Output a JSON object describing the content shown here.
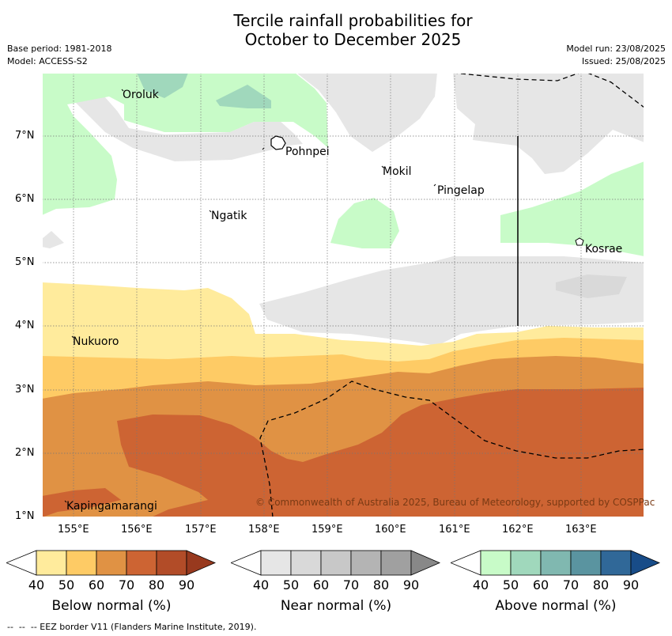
{
  "title_line1": "Tercile rainfall probabilities for",
  "title_line2": "October to December 2025",
  "base_period": "Base period: 1981-2018",
  "model": "Model: ACCESS-S2",
  "model_run": "Model run: 23/08/2025",
  "issued": "Issued: 25/08/2025",
  "places": {
    "oroluk": "Oroluk",
    "pohnpei": "Pohnpei",
    "mokil": "Mokil",
    "pingelap": "Pingelap",
    "ngatik": "Ngatik",
    "kosrae": "Kosrae",
    "nukuoro": "Nukuoro",
    "kapingamarangi": "Kapingamarangi"
  },
  "copyright": "© Commonwealth of Australia 2025, Bureau of Meteorology, supported by COSPPac",
  "lat_ticks": [
    "7°N",
    "6°N",
    "5°N",
    "4°N",
    "3°N",
    "2°N",
    "1°N"
  ],
  "lon_ticks": [
    "155°E",
    "156°E",
    "157°E",
    "158°E",
    "159°E",
    "160°E",
    "161°E",
    "162°E",
    "163°E"
  ],
  "colorbars": {
    "below": {
      "title": "Below normal (%)",
      "ticks": [
        "40",
        "50",
        "60",
        "70",
        "80",
        "90"
      ],
      "colors": [
        "#ffffff",
        "#ffeb9c",
        "#fecb65",
        "#e09244",
        "#cd6433",
        "#b24c28",
        "#98391e"
      ]
    },
    "near": {
      "title": "Near normal (%)",
      "ticks": [
        "40",
        "50",
        "60",
        "70",
        "80",
        "90"
      ],
      "colors": [
        "#ffffff",
        "#e6e6e6",
        "#d9d9d9",
        "#c8c8c8",
        "#b4b4b4",
        "#a0a0a0",
        "#888888"
      ]
    },
    "above": {
      "title": "Above normal (%)",
      "ticks": [
        "40",
        "50",
        "60",
        "70",
        "80",
        "90"
      ],
      "colors": [
        "#ffffff",
        "#c8fbc8",
        "#a0d8bc",
        "#80b8b0",
        "#5a94a0",
        "#306898",
        "#184c88"
      ]
    }
  },
  "eez_legend": "--  --  -- EEZ border V11 (Flanders Marine Institute, 2019)."
}
